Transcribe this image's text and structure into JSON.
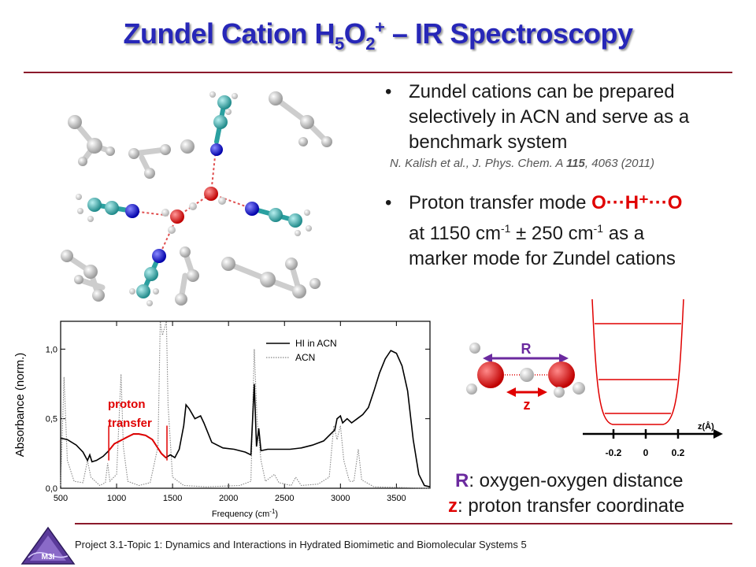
{
  "title": {
    "pre": "Zundel Cation H",
    "sub1": "5",
    "mid": "O",
    "sub2": "2",
    "sup": "+",
    "post": " – IR Spectroscopy"
  },
  "bullets": [
    {
      "text": "Zundel cations can be prepared selectively in ACN and serve as a benchmark system",
      "ref": {
        "authors": "N. Kalish et al., J. Phys. Chem. A ",
        "volume": "115",
        "rest": ", 4063 (2011)"
      }
    },
    {
      "line1_pre": "Proton transfer mode ",
      "mode": "O···H⁺···O",
      "line2_a": "at 1150 cm",
      "exp1": "-1",
      "line2_b": " ± 250 cm",
      "exp2": "-1",
      "line2_c": " as a",
      "line3": "marker mode for Zundel cations"
    }
  ],
  "chart_data": {
    "type": "line",
    "xlabel_pre": "Frequency (cm",
    "xlabel_exp": "-1",
    "xlabel_post": ")",
    "ylabel": "Absorbance (norm.)",
    "xlim": [
      500,
      3800
    ],
    "ylim": [
      0,
      1.2
    ],
    "xticks": [
      "500",
      "1000",
      "1500",
      "2000",
      "2500",
      "3000",
      "3500"
    ],
    "yticks": [
      "0,0",
      "0,5",
      "1,0"
    ],
    "annotation": "proton transfer",
    "series": [
      {
        "name": "HI in ACN",
        "color": "#000000",
        "points": [
          [
            500,
            0.36
          ],
          [
            560,
            0.35
          ],
          [
            640,
            0.31
          ],
          [
            700,
            0.26
          ],
          [
            740,
            0.2
          ],
          [
            760,
            0.24
          ],
          [
            780,
            0.19
          ],
          [
            820,
            0.2
          ],
          [
            880,
            0.23
          ],
          [
            930,
            0.27
          ],
          [
            980,
            0.32
          ],
          [
            1030,
            0.34
          ],
          [
            1100,
            0.37
          ],
          [
            1150,
            0.39
          ],
          [
            1200,
            0.39
          ],
          [
            1260,
            0.38
          ],
          [
            1320,
            0.35
          ],
          [
            1360,
            0.3
          ],
          [
            1400,
            0.25
          ],
          [
            1440,
            0.22
          ],
          [
            1480,
            0.24
          ],
          [
            1520,
            0.22
          ],
          [
            1560,
            0.28
          ],
          [
            1600,
            0.45
          ],
          [
            1620,
            0.6
          ],
          [
            1650,
            0.57
          ],
          [
            1700,
            0.5
          ],
          [
            1750,
            0.52
          ],
          [
            1780,
            0.47
          ],
          [
            1850,
            0.33
          ],
          [
            1950,
            0.29
          ],
          [
            2050,
            0.28
          ],
          [
            2150,
            0.26
          ],
          [
            2200,
            0.24
          ],
          [
            2230,
            0.75
          ],
          [
            2250,
            0.3
          ],
          [
            2270,
            0.43
          ],
          [
            2290,
            0.27
          ],
          [
            2350,
            0.28
          ],
          [
            2450,
            0.28
          ],
          [
            2550,
            0.28
          ],
          [
            2650,
            0.29
          ],
          [
            2750,
            0.31
          ],
          [
            2850,
            0.34
          ],
          [
            2950,
            0.42
          ],
          [
            2970,
            0.5
          ],
          [
            3000,
            0.52
          ],
          [
            3020,
            0.47
          ],
          [
            3060,
            0.5
          ],
          [
            3100,
            0.47
          ],
          [
            3150,
            0.5
          ],
          [
            3200,
            0.53
          ],
          [
            3250,
            0.58
          ],
          [
            3300,
            0.7
          ],
          [
            3350,
            0.83
          ],
          [
            3400,
            0.93
          ],
          [
            3450,
            0.99
          ],
          [
            3500,
            0.97
          ],
          [
            3550,
            0.88
          ],
          [
            3600,
            0.7
          ],
          [
            3650,
            0.35
          ],
          [
            3700,
            0.1
          ],
          [
            3750,
            0.02
          ],
          [
            3800,
            0.01
          ]
        ]
      },
      {
        "name": "ACN",
        "color": "#888888",
        "points": [
          [
            500,
            0.02
          ],
          [
            530,
            0.8
          ],
          [
            560,
            0.2
          ],
          [
            620,
            0.05
          ],
          [
            700,
            0.04
          ],
          [
            740,
            0.2
          ],
          [
            770,
            0.08
          ],
          [
            850,
            0.02
          ],
          [
            900,
            0.04
          ],
          [
            920,
            0.18
          ],
          [
            940,
            0.05
          ],
          [
            1000,
            0.1
          ],
          [
            1040,
            0.82
          ],
          [
            1060,
            0.3
          ],
          [
            1100,
            0.05
          ],
          [
            1200,
            0.02
          ],
          [
            1300,
            0.04
          ],
          [
            1370,
            0.3
          ],
          [
            1390,
            1.2
          ],
          [
            1410,
            1.1
          ],
          [
            1445,
            1.2
          ],
          [
            1460,
            0.6
          ],
          [
            1500,
            0.08
          ],
          [
            1600,
            0.02
          ],
          [
            1800,
            0.01
          ],
          [
            2100,
            0.02
          ],
          [
            2200,
            0.05
          ],
          [
            2230,
            1.0
          ],
          [
            2255,
            0.5
          ],
          [
            2290,
            0.2
          ],
          [
            2330,
            0.05
          ],
          [
            2410,
            0.1
          ],
          [
            2450,
            0.04
          ],
          [
            2560,
            0.02
          ],
          [
            2600,
            0.08
          ],
          [
            2650,
            0.02
          ],
          [
            2800,
            0.03
          ],
          [
            2900,
            0.08
          ],
          [
            2940,
            0.45
          ],
          [
            2970,
            0.35
          ],
          [
            3000,
            0.45
          ],
          [
            3030,
            0.2
          ],
          [
            3080,
            0.05
          ],
          [
            3120,
            0.05
          ],
          [
            3160,
            0.28
          ],
          [
            3190,
            0.06
          ],
          [
            3300,
            0.01
          ],
          [
            3800,
            0.0
          ]
        ]
      }
    ],
    "highlight": {
      "color": "#e00000",
      "x_range": [
        930,
        1450
      ]
    }
  },
  "diagram": {
    "R_label": "R",
    "z_label": "z",
    "zaxis_label": "z(Å)",
    "zticks": [
      "-0.2",
      "0",
      "0.2"
    ],
    "definitions": [
      {
        "sym": "R",
        "text": ": oxygen-oxygen distance",
        "color": "#6b2a9f"
      },
      {
        "sym": "z",
        "text": ": proton transfer coordinate",
        "color": "#e00000"
      }
    ]
  },
  "footer": {
    "text": "Project 3.1-Topic 1: Dynamics and Interactions in Hydrated Biomimetic and Biomolecular Systems 5",
    "logo": "M3I"
  },
  "colors": {
    "title": "#2727b8",
    "rule": "#8b1a2b",
    "accent": "#e00000",
    "purple": "#6b2a9f"
  }
}
